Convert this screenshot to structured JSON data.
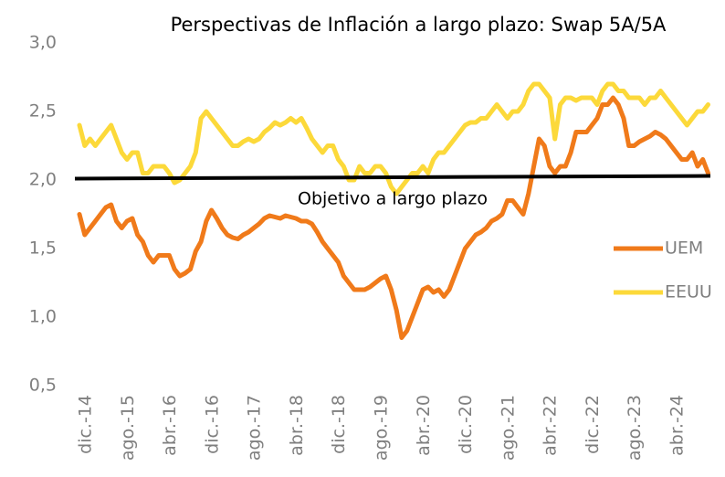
{
  "chart_data": {
    "type": "line",
    "title": "Perspectivas de Inflación a largo plazo: Swap 5A/5A",
    "categories": [
      "dic.-14",
      null,
      null,
      null,
      null,
      null,
      null,
      null,
      "ago.-15",
      null,
      null,
      null,
      null,
      null,
      null,
      null,
      "abr.-16",
      null,
      null,
      null,
      null,
      null,
      null,
      null,
      "dic.-16",
      null,
      null,
      null,
      null,
      null,
      null,
      null,
      "ago.-17",
      null,
      null,
      null,
      null,
      null,
      null,
      null,
      "abr.-18",
      null,
      null,
      null,
      null,
      null,
      null,
      null,
      "dic.-18",
      null,
      null,
      null,
      null,
      null,
      null,
      null,
      "ago.-19",
      null,
      null,
      null,
      null,
      null,
      null,
      null,
      "abr.-20",
      null,
      null,
      null,
      null,
      null,
      null,
      null,
      "dic.-20",
      null,
      null,
      null,
      null,
      null,
      null,
      null,
      "ago.-21",
      null,
      null,
      null,
      null,
      null,
      null,
      null,
      "abr.-22",
      null,
      null,
      null,
      null,
      null,
      null,
      null,
      "dic.-22",
      null,
      null,
      null,
      null,
      null,
      null,
      null,
      "ago.-23",
      null,
      null,
      null,
      null,
      null,
      null,
      null,
      "abr.-24",
      null,
      null,
      null,
      null,
      null,
      null,
      null
    ],
    "series": [
      {
        "name": "UEM",
        "color": "#f07a1a",
        "values": [
          1.75,
          1.6,
          1.65,
          1.7,
          1.75,
          1.8,
          1.82,
          1.7,
          1.65,
          1.7,
          1.72,
          1.6,
          1.55,
          1.45,
          1.4,
          1.45,
          1.45,
          1.45,
          1.35,
          1.3,
          1.32,
          1.35,
          1.48,
          1.55,
          1.7,
          1.78,
          1.72,
          1.65,
          1.6,
          1.58,
          1.57,
          1.6,
          1.62,
          1.65,
          1.68,
          1.72,
          1.74,
          1.73,
          1.72,
          1.74,
          1.73,
          1.72,
          1.7,
          1.7,
          1.68,
          1.62,
          1.55,
          1.5,
          1.45,
          1.4,
          1.3,
          1.25,
          1.2,
          1.2,
          1.2,
          1.22,
          1.25,
          1.28,
          1.3,
          1.2,
          1.05,
          0.85,
          0.9,
          1.0,
          1.1,
          1.2,
          1.22,
          1.18,
          1.2,
          1.15,
          1.2,
          1.3,
          1.4,
          1.5,
          1.55,
          1.6,
          1.62,
          1.65,
          1.7,
          1.72,
          1.75,
          1.85,
          1.85,
          1.8,
          1.75,
          1.9,
          2.1,
          2.3,
          2.25,
          2.1,
          2.05,
          2.1,
          2.1,
          2.2,
          2.35,
          2.35,
          2.35,
          2.4,
          2.45,
          2.55,
          2.55,
          2.6,
          2.55,
          2.45,
          2.25,
          2.25,
          2.28,
          2.3,
          2.32,
          2.35,
          2.33,
          2.3,
          2.25,
          2.2,
          2.15,
          2.15,
          2.2,
          2.1,
          2.15,
          2.05
        ]
      },
      {
        "name": "EEUU",
        "color": "#fcd93a",
        "values": [
          2.4,
          2.25,
          2.3,
          2.25,
          2.3,
          2.35,
          2.4,
          2.3,
          2.2,
          2.15,
          2.2,
          2.2,
          2.05,
          2.05,
          2.1,
          2.1,
          2.1,
          2.05,
          1.98,
          2.0,
          2.05,
          2.1,
          2.2,
          2.45,
          2.5,
          2.45,
          2.4,
          2.35,
          2.3,
          2.25,
          2.25,
          2.28,
          2.3,
          2.28,
          2.3,
          2.35,
          2.38,
          2.42,
          2.4,
          2.42,
          2.45,
          2.42,
          2.45,
          2.38,
          2.3,
          2.25,
          2.2,
          2.25,
          2.25,
          2.15,
          2.1,
          2.0,
          2.0,
          2.1,
          2.05,
          2.05,
          2.1,
          2.1,
          2.05,
          1.95,
          1.9,
          1.95,
          2.0,
          2.05,
          2.05,
          2.1,
          2.05,
          2.15,
          2.2,
          2.2,
          2.25,
          2.3,
          2.35,
          2.4,
          2.42,
          2.42,
          2.45,
          2.45,
          2.5,
          2.55,
          2.5,
          2.45,
          2.5,
          2.5,
          2.55,
          2.65,
          2.7,
          2.7,
          2.65,
          2.6,
          2.3,
          2.55,
          2.6,
          2.6,
          2.58,
          2.6,
          2.6,
          2.6,
          2.55,
          2.65,
          2.7,
          2.7,
          2.65,
          2.65,
          2.6,
          2.6,
          2.6,
          2.55,
          2.6,
          2.6,
          2.65,
          2.6,
          2.55,
          2.5,
          2.45,
          2.4,
          2.45,
          2.5,
          2.5,
          2.55
        ]
      }
    ],
    "target": {
      "label": "Objetivo a largo plazo",
      "color": "#000000",
      "values": [
        2.01,
        2.03
      ]
    },
    "ylim": [
      0.5,
      3.0
    ],
    "yticks": [
      {
        "value": 0.5,
        "label": "0,5"
      },
      {
        "value": 1.0,
        "label": "1,0"
      },
      {
        "value": 1.5,
        "label": "1,5"
      },
      {
        "value": 2.0,
        "label": "2,0"
      },
      {
        "value": 2.5,
        "label": "2,5"
      },
      {
        "value": 3.0,
        "label": "3,0"
      }
    ],
    "grid": false,
    "legend": "right"
  }
}
